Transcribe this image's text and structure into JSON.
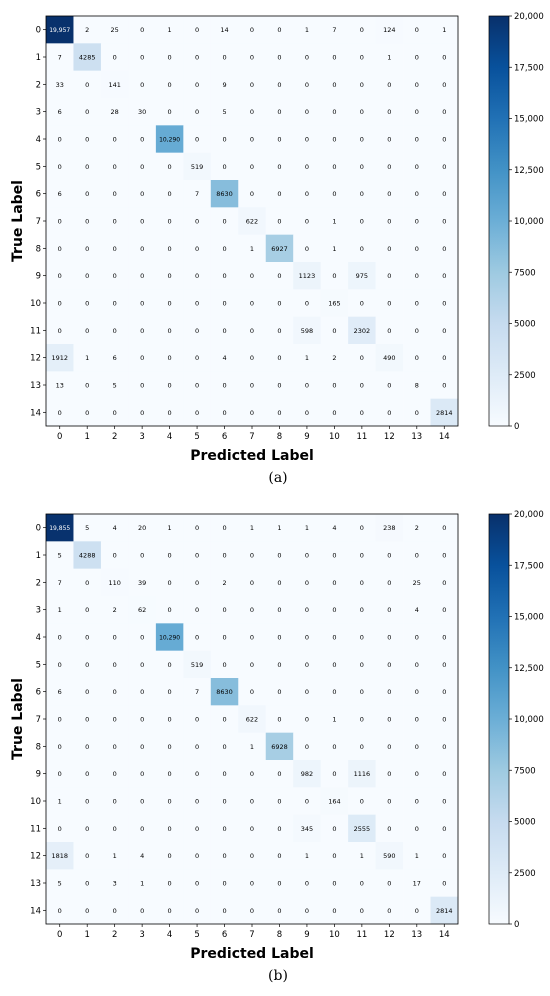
{
  "chart_data": [
    {
      "type": "heatmap",
      "caption": "(a)",
      "xlabel": "Predicted Label",
      "ylabel": "True Label",
      "x_ticks": [
        "0",
        "1",
        "2",
        "3",
        "4",
        "5",
        "6",
        "7",
        "8",
        "9",
        "10",
        "11",
        "12",
        "13",
        "14"
      ],
      "y_ticks": [
        "0",
        "1",
        "2",
        "3",
        "4",
        "5",
        "6",
        "7",
        "8",
        "9",
        "10",
        "11",
        "12",
        "13",
        "14"
      ],
      "colorbar": {
        "min": 0,
        "max": 20000,
        "ticks": [
          "0",
          "2500",
          "5000",
          "7500",
          "10,000",
          "12,500",
          "15,000",
          "17,500",
          "20,000"
        ],
        "colormap": "Blues"
      },
      "matrix": [
        [
          19957,
          2,
          25,
          0,
          1,
          0,
          14,
          0,
          0,
          1,
          7,
          0,
          124,
          0,
          1
        ],
        [
          7,
          4285,
          0,
          0,
          0,
          0,
          0,
          0,
          0,
          0,
          0,
          0,
          1,
          0,
          0
        ],
        [
          33,
          0,
          141,
          0,
          0,
          0,
          9,
          0,
          0,
          0,
          0,
          0,
          0,
          0,
          0
        ],
        [
          6,
          0,
          28,
          30,
          0,
          0,
          5,
          0,
          0,
          0,
          0,
          0,
          0,
          0,
          0
        ],
        [
          0,
          0,
          0,
          0,
          10290,
          0,
          0,
          0,
          0,
          0,
          0,
          0,
          0,
          0,
          0
        ],
        [
          0,
          0,
          0,
          0,
          0,
          519,
          0,
          0,
          0,
          0,
          0,
          0,
          0,
          0,
          0
        ],
        [
          6,
          0,
          0,
          0,
          0,
          7,
          8630,
          0,
          0,
          0,
          0,
          0,
          0,
          0,
          0
        ],
        [
          0,
          0,
          0,
          0,
          0,
          0,
          0,
          622,
          0,
          0,
          1,
          0,
          0,
          0,
          0
        ],
        [
          0,
          0,
          0,
          0,
          0,
          0,
          0,
          1,
          6927,
          0,
          1,
          0,
          0,
          0,
          0
        ],
        [
          0,
          0,
          0,
          0,
          0,
          0,
          0,
          0,
          0,
          1123,
          0,
          975,
          0,
          0,
          0
        ],
        [
          0,
          0,
          0,
          0,
          0,
          0,
          0,
          0,
          0,
          0,
          165,
          0,
          0,
          0,
          0
        ],
        [
          0,
          0,
          0,
          0,
          0,
          0,
          0,
          0,
          0,
          598,
          0,
          2302,
          0,
          0,
          0
        ],
        [
          1912,
          1,
          6,
          0,
          0,
          0,
          4,
          0,
          0,
          1,
          2,
          0,
          490,
          0,
          0
        ],
        [
          13,
          0,
          5,
          0,
          0,
          0,
          0,
          0,
          0,
          0,
          0,
          0,
          0,
          8,
          0
        ],
        [
          0,
          0,
          0,
          0,
          0,
          0,
          0,
          0,
          0,
          0,
          0,
          0,
          0,
          0,
          2814
        ]
      ]
    },
    {
      "type": "heatmap",
      "caption": "(b)",
      "xlabel": "Predicted Label",
      "ylabel": "True Label",
      "x_ticks": [
        "0",
        "1",
        "2",
        "3",
        "4",
        "5",
        "6",
        "7",
        "8",
        "9",
        "10",
        "11",
        "12",
        "13",
        "14"
      ],
      "y_ticks": [
        "0",
        "1",
        "2",
        "3",
        "4",
        "5",
        "6",
        "7",
        "8",
        "9",
        "10",
        "11",
        "12",
        "13",
        "14"
      ],
      "colorbar": {
        "min": 0,
        "max": 20000,
        "ticks": [
          "0",
          "2500",
          "5000",
          "7500",
          "10,000",
          "12,500",
          "15,000",
          "17,500",
          "20,000"
        ],
        "colormap": "Blues"
      },
      "matrix": [
        [
          19855,
          5,
          4,
          20,
          1,
          0,
          0,
          1,
          1,
          1,
          4,
          0,
          238,
          2,
          0
        ],
        [
          5,
          4288,
          0,
          0,
          0,
          0,
          0,
          0,
          0,
          0,
          0,
          0,
          0,
          0,
          0
        ],
        [
          7,
          0,
          110,
          39,
          0,
          0,
          2,
          0,
          0,
          0,
          0,
          0,
          0,
          25,
          0
        ],
        [
          1,
          0,
          2,
          62,
          0,
          0,
          0,
          0,
          0,
          0,
          0,
          0,
          0,
          4,
          0
        ],
        [
          0,
          0,
          0,
          0,
          10290,
          0,
          0,
          0,
          0,
          0,
          0,
          0,
          0,
          0,
          0
        ],
        [
          0,
          0,
          0,
          0,
          0,
          519,
          0,
          0,
          0,
          0,
          0,
          0,
          0,
          0,
          0
        ],
        [
          6,
          0,
          0,
          0,
          0,
          7,
          8630,
          0,
          0,
          0,
          0,
          0,
          0,
          0,
          0
        ],
        [
          0,
          0,
          0,
          0,
          0,
          0,
          0,
          622,
          0,
          0,
          1,
          0,
          0,
          0,
          0
        ],
        [
          0,
          0,
          0,
          0,
          0,
          0,
          0,
          1,
          6928,
          0,
          0,
          0,
          0,
          0,
          0
        ],
        [
          0,
          0,
          0,
          0,
          0,
          0,
          0,
          0,
          0,
          982,
          0,
          1116,
          0,
          0,
          0
        ],
        [
          1,
          0,
          0,
          0,
          0,
          0,
          0,
          0,
          0,
          0,
          164,
          0,
          0,
          0,
          0
        ],
        [
          0,
          0,
          0,
          0,
          0,
          0,
          0,
          0,
          0,
          345,
          0,
          2555,
          0,
          0,
          0
        ],
        [
          1818,
          0,
          1,
          4,
          0,
          0,
          0,
          0,
          0,
          1,
          0,
          1,
          590,
          1,
          0
        ],
        [
          5,
          0,
          3,
          1,
          0,
          0,
          0,
          0,
          0,
          0,
          0,
          0,
          0,
          17,
          0
        ],
        [
          0,
          0,
          0,
          0,
          0,
          0,
          0,
          0,
          0,
          0,
          0,
          0,
          0,
          0,
          2814
        ]
      ]
    }
  ]
}
